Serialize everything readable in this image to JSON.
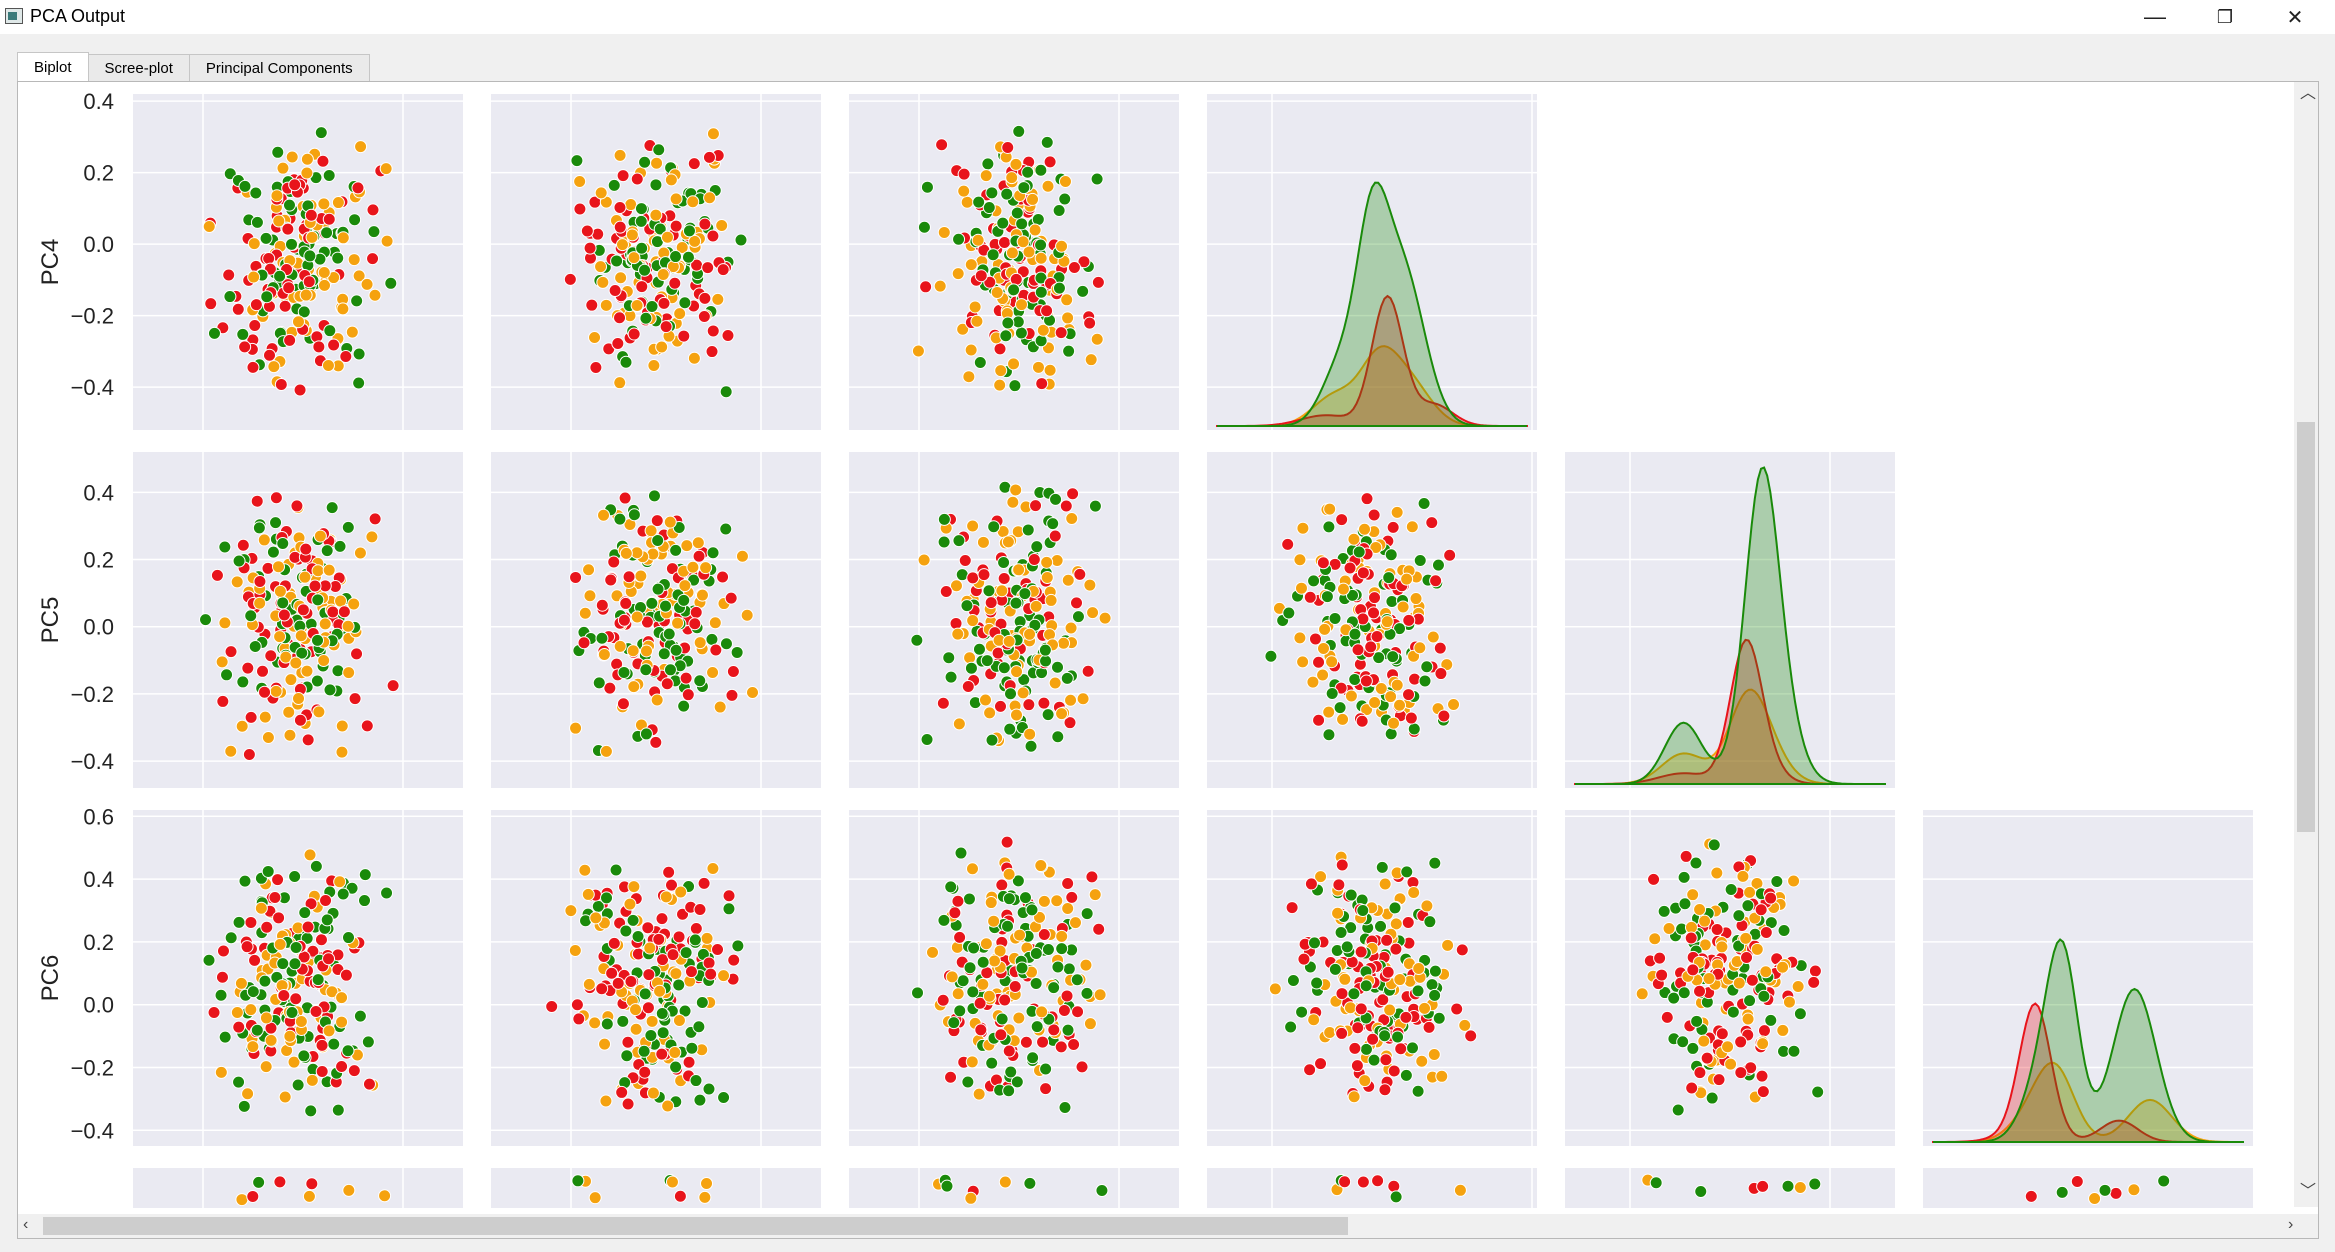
{
  "window": {
    "title": "PCA Output",
    "minimize": "—",
    "restore": "❐",
    "close": "✕"
  },
  "tabs": [
    {
      "label": "Biplot",
      "active": true
    },
    {
      "label": "Scree-plot",
      "active": false
    },
    {
      "label": "Principal Components",
      "active": false
    }
  ],
  "colors": {
    "green": "#1a8a0a",
    "red": "#e8141b",
    "orange": "#f5a20f",
    "panel_bg": "#eaeaf2"
  },
  "chart_data": {
    "type": "scatter",
    "title": "",
    "description_rows": [
      "PC4",
      "PC5",
      "PC6"
    ],
    "grid": true,
    "rows": [
      {
        "ylabel": "PC4",
        "yticks": [
          "0.4",
          "0.2",
          "0.0",
          "−0.2",
          "−0.4"
        ],
        "ylim": [
          -0.52,
          0.42
        ]
      },
      {
        "ylabel": "PC5",
        "yticks": [
          "0.4",
          "0.2",
          "0.0",
          "−0.2",
          "−0.4"
        ],
        "ylim": [
          -0.48,
          0.52
        ]
      },
      {
        "ylabel": "PC6",
        "yticks": [
          "0.6",
          "0.4",
          "0.2",
          "0.0",
          "−0.2",
          "−0.4"
        ],
        "ylim": [
          -0.45,
          0.62
        ]
      }
    ],
    "series": [
      {
        "color": "green"
      },
      {
        "color": "red"
      },
      {
        "color": "orange"
      }
    ]
  }
}
